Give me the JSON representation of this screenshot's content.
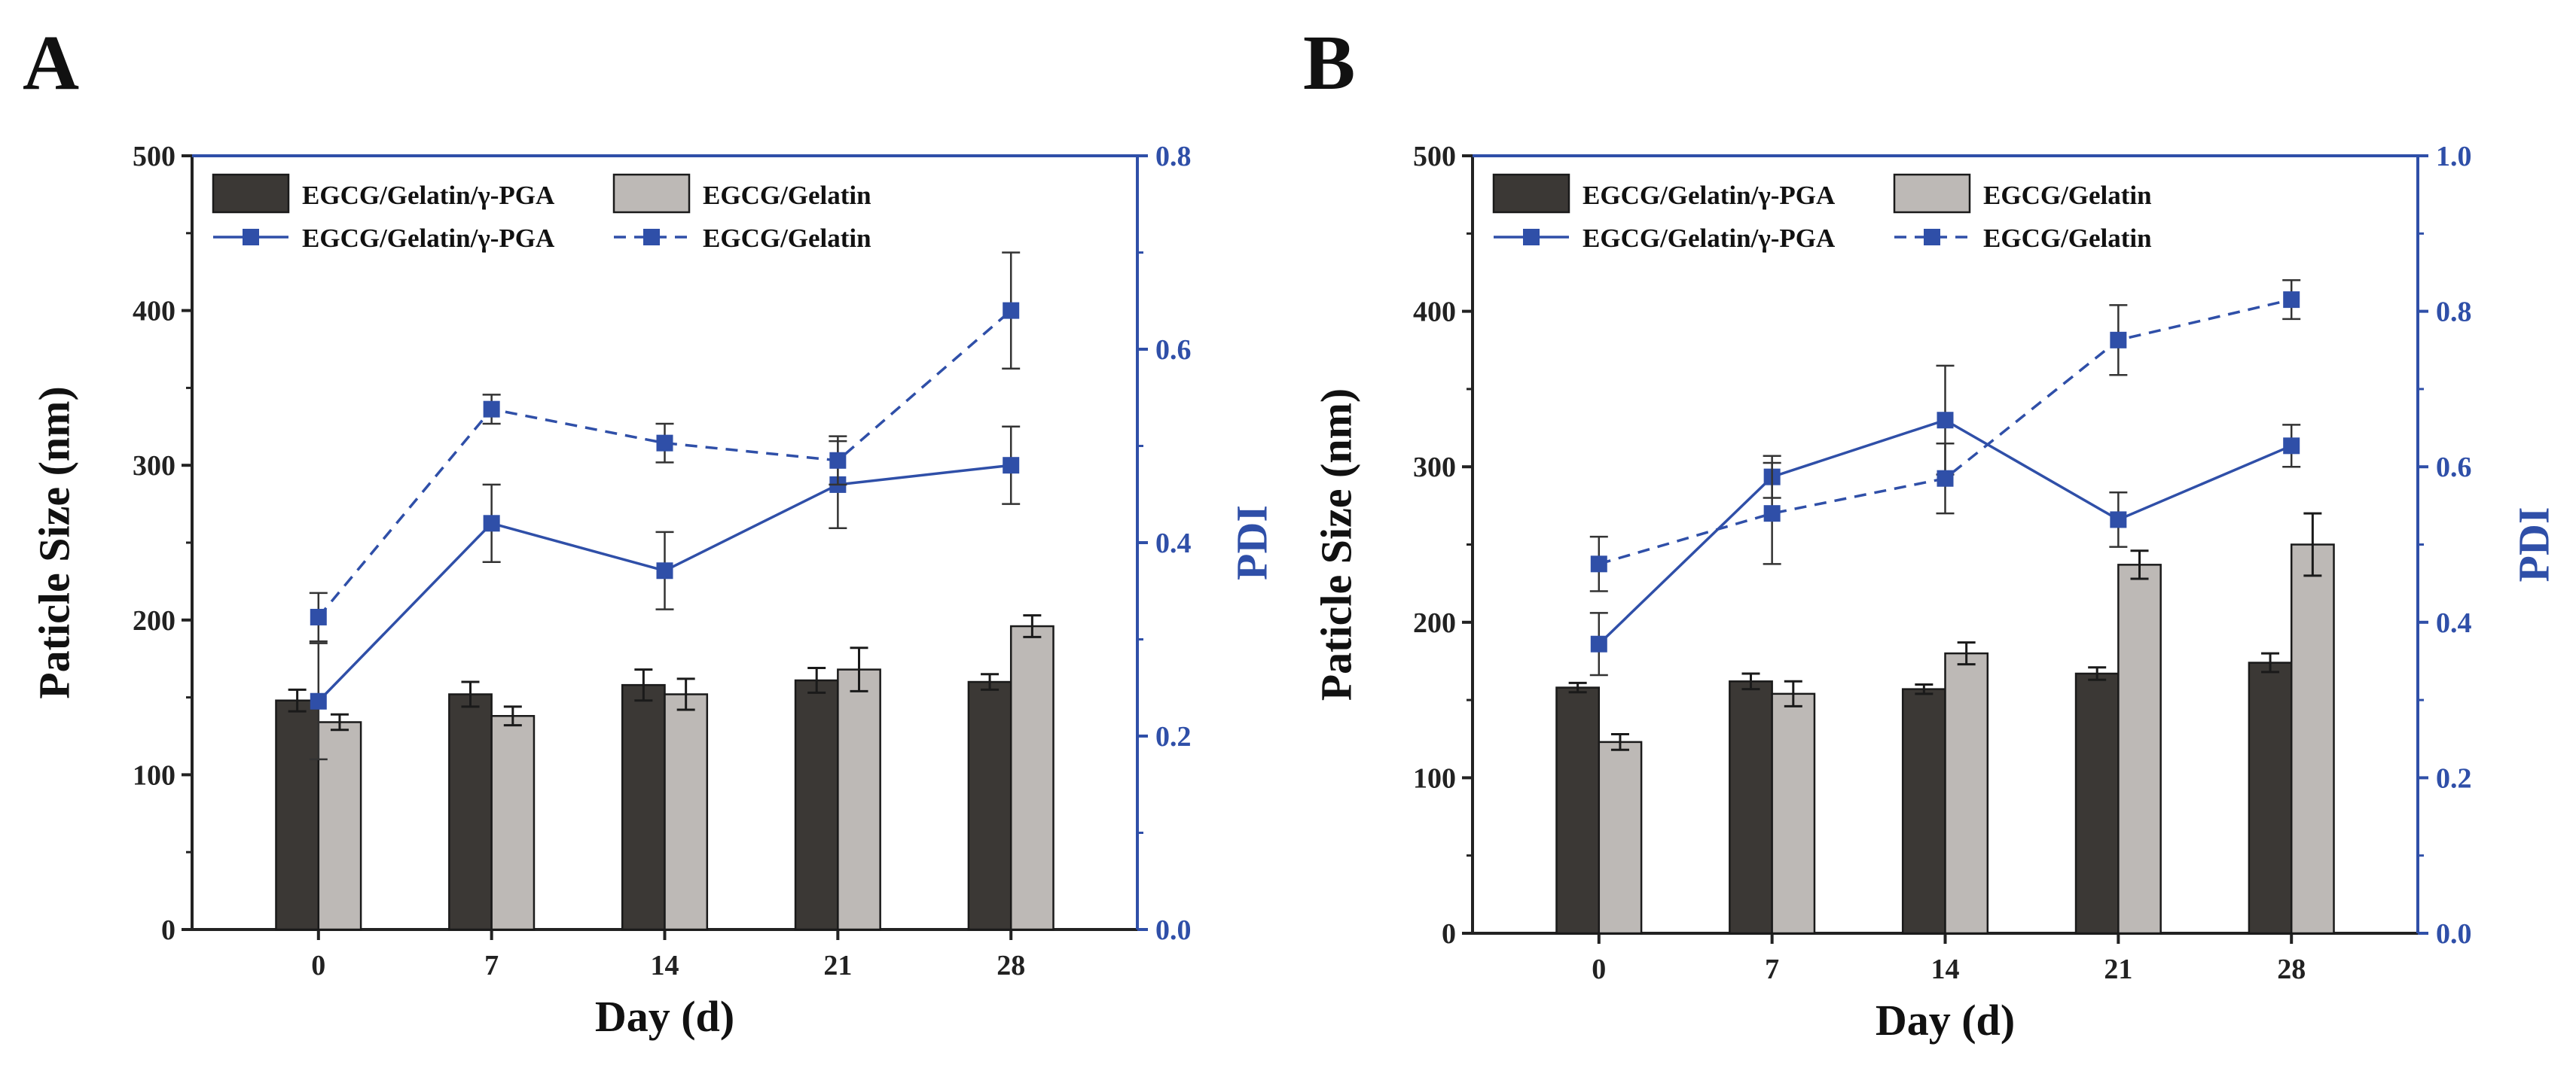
{
  "chart_data": [
    {
      "panel": "A",
      "type": "bar",
      "categories": [
        "0",
        "7",
        "14",
        "21",
        "28"
      ],
      "xlabel": "Day (d)",
      "ylabel": "Paticle Size (nm)",
      "ylabel_right": "PDI",
      "ylim": [
        0,
        500
      ],
      "yticks": [
        "0",
        "100",
        "200",
        "300",
        "400",
        "500"
      ],
      "ylim_right": [
        0,
        0.8
      ],
      "yticks_right": [
        "0.0",
        "0.2",
        "0.4",
        "0.6",
        "0.8"
      ],
      "bar_series": [
        {
          "name": "EGCG/Gelatin/γ-PGA",
          "color": "#3b3835",
          "values": [
            148,
            152,
            158,
            161,
            160
          ],
          "errors": [
            7,
            8,
            10,
            8,
            5
          ]
        },
        {
          "name": "EGCG/Gelatin",
          "color": "#bdb9b6",
          "values": [
            134,
            138,
            152,
            168,
            196
          ],
          "errors": [
            5,
            6,
            10,
            14,
            7
          ]
        }
      ],
      "line_series": [
        {
          "name": "EGCG/Gelatin/γ-PGA",
          "style": "solid",
          "color": "#2f4fa8",
          "values": [
            0.236,
            0.42,
            0.371,
            0.46,
            0.48
          ],
          "errors": [
            0.06,
            0.04,
            0.04,
            0.045,
            0.04
          ]
        },
        {
          "name": "EGCG/Gelatin",
          "style": "dashed",
          "color": "#2f4fa8",
          "values": [
            0.323,
            0.538,
            0.503,
            0.485,
            0.64
          ],
          "errors": [
            0.025,
            0.015,
            0.02,
            0.025,
            0.06
          ]
        }
      ]
    },
    {
      "panel": "B",
      "type": "bar",
      "categories": [
        "0",
        "7",
        "14",
        "21",
        "28"
      ],
      "xlabel": "Day (d)",
      "ylabel": "Paticle Size (nm)",
      "ylabel_right": "PDI",
      "ylim": [
        0,
        500
      ],
      "yticks": [
        "0",
        "100",
        "200",
        "300",
        "400",
        "500"
      ],
      "ylim_right": [
        0,
        1.0
      ],
      "yticks_right": [
        "0.0",
        "0.2",
        "0.4",
        "0.6",
        "0.8",
        "1.0"
      ],
      "bar_series": [
        {
          "name": "EGCG/Gelatin/γ-PGA",
          "color": "#3b3835",
          "values": [
            158,
            162,
            157,
            167,
            174
          ],
          "errors": [
            3,
            5,
            3,
            4,
            6
          ]
        },
        {
          "name": "EGCG/Gelatin",
          "color": "#bdb9b6",
          "values": [
            123,
            154,
            180,
            237,
            250
          ],
          "errors": [
            5,
            8,
            7,
            9,
            20
          ]
        }
      ],
      "line_series": [
        {
          "name": "EGCG/Gelatin/γ-PGA",
          "style": "solid",
          "color": "#2f4fa8",
          "values": [
            0.372,
            0.587,
            0.66,
            0.532,
            0.627
          ],
          "errors": [
            0.04,
            0.027,
            0.07,
            0.035,
            0.027
          ]
        },
        {
          "name": "EGCG/Gelatin",
          "style": "dashed",
          "color": "#2f4fa8",
          "values": [
            0.475,
            0.54,
            0.585,
            0.763,
            0.815
          ],
          "errors": [
            0.035,
            0.065,
            0.045,
            0.045,
            0.025
          ]
        }
      ]
    }
  ]
}
